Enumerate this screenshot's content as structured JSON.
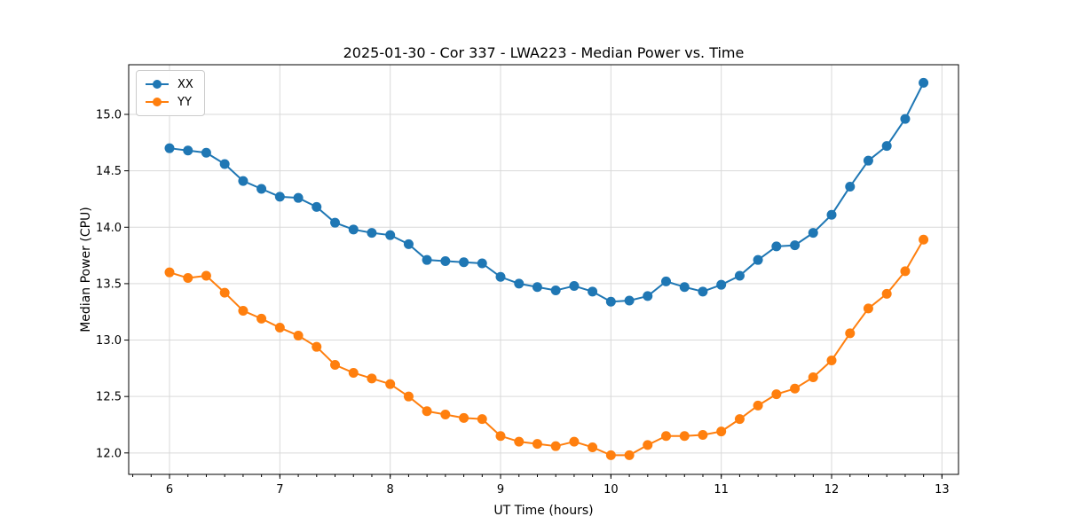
{
  "chart_data": {
    "type": "line",
    "title": "2025-01-30 - Cor 337 - LWA223 - Median Power vs. Time",
    "xlabel": "UT Time (hours)",
    "ylabel": "Median Power (CPU)",
    "xlim": [
      5.63,
      13.15
    ],
    "ylim": [
      11.81,
      15.44
    ],
    "xticks": [
      6,
      7,
      8,
      9,
      10,
      11,
      12,
      13
    ],
    "yticks": [
      12.0,
      12.5,
      13.0,
      13.5,
      14.0,
      14.5,
      15.0
    ],
    "x_minor_step": 0.16667,
    "grid": true,
    "grid_color": "#d9d9d9",
    "legend_position": "upper-left",
    "x": [
      6.0,
      6.167,
      6.333,
      6.5,
      6.667,
      6.833,
      7.0,
      7.167,
      7.333,
      7.5,
      7.667,
      7.833,
      8.0,
      8.167,
      8.333,
      8.5,
      8.667,
      8.833,
      9.0,
      9.167,
      9.333,
      9.5,
      9.667,
      9.833,
      10.0,
      10.167,
      10.333,
      10.5,
      10.667,
      10.833,
      11.0,
      11.167,
      11.333,
      11.5,
      11.667,
      11.833,
      12.0,
      12.167,
      12.333,
      12.5,
      12.667,
      12.833
    ],
    "series": [
      {
        "name": "XX",
        "color": "#1f77b4",
        "values": [
          14.7,
          14.68,
          14.66,
          14.56,
          14.41,
          14.34,
          14.27,
          14.26,
          14.18,
          14.04,
          13.98,
          13.95,
          13.93,
          13.85,
          13.71,
          13.7,
          13.69,
          13.68,
          13.56,
          13.5,
          13.47,
          13.44,
          13.48,
          13.43,
          13.34,
          13.35,
          13.39,
          13.52,
          13.47,
          13.43,
          13.49,
          13.57,
          13.71,
          13.83,
          13.84,
          13.95,
          14.11,
          14.36,
          14.59,
          14.72,
          14.96,
          15.28
        ]
      },
      {
        "name": "YY",
        "color": "#ff7f0e",
        "values": [
          13.6,
          13.55,
          13.57,
          13.42,
          13.26,
          13.19,
          13.11,
          13.04,
          12.94,
          12.78,
          12.71,
          12.66,
          12.61,
          12.5,
          12.37,
          12.34,
          12.31,
          12.3,
          12.15,
          12.1,
          12.08,
          12.06,
          12.1,
          12.05,
          11.98,
          11.98,
          12.07,
          12.15,
          12.15,
          12.16,
          12.19,
          12.3,
          12.42,
          12.52,
          12.57,
          12.67,
          12.82,
          13.06,
          13.28,
          13.41,
          13.61,
          13.89
        ]
      }
    ]
  }
}
